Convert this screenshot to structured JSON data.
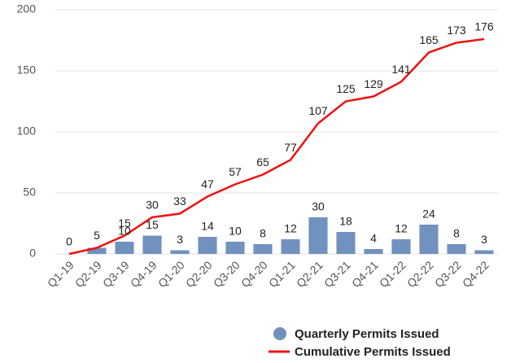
{
  "chart_data": {
    "type": "bar_line",
    "categories": [
      "Q1-19",
      "Q2-19",
      "Q3-19",
      "Q4-19",
      "Q1-20",
      "Q2-20",
      "Q3-20",
      "Q4-20",
      "Q1-21",
      "Q2-21",
      "Q3-21",
      "Q4-21",
      "Q1-22",
      "Q2-22",
      "Q3-22",
      "Q4-22"
    ],
    "series": [
      {
        "name": "Quarterly Permits Issued",
        "type": "bar",
        "color": "#7191be",
        "values": [
          0,
          5,
          10,
          15,
          3,
          14,
          10,
          8,
          12,
          30,
          18,
          4,
          12,
          24,
          8,
          3
        ]
      },
      {
        "name": "Cumulative Permits Issued",
        "type": "line",
        "color": "#ee1111",
        "values": [
          0,
          5,
          15,
          30,
          33,
          47,
          57,
          65,
          77,
          107,
          125,
          129,
          141,
          165,
          173,
          176
        ]
      }
    ],
    "ylim": [
      0,
      200
    ],
    "yticks": [
      0,
      50,
      100,
      150,
      200
    ],
    "grid": true,
    "legend": "bottom-right"
  }
}
